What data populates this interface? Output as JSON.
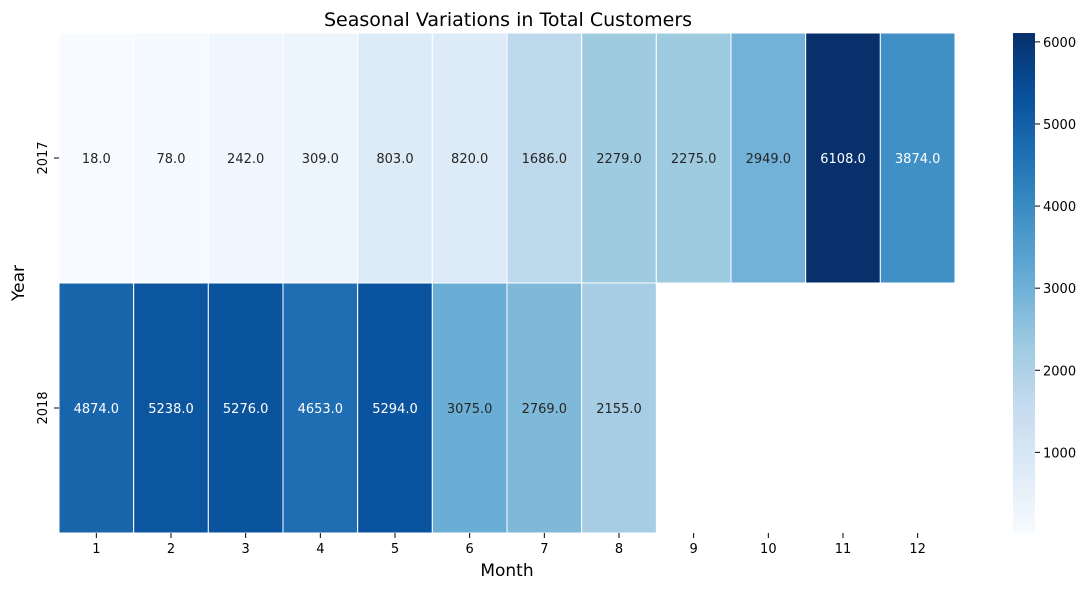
{
  "chart_data": {
    "type": "heatmap",
    "title": "Seasonal Variations in Total Customers",
    "xlabel": "Month",
    "ylabel": "Year",
    "x": [
      "1",
      "2",
      "3",
      "4",
      "5",
      "6",
      "7",
      "8",
      "9",
      "10",
      "11",
      "12"
    ],
    "y": [
      "2017",
      "2018"
    ],
    "values": [
      [
        18.0,
        78.0,
        242.0,
        309.0,
        803.0,
        820.0,
        1686.0,
        2279.0,
        2275.0,
        2949.0,
        6108.0,
        3874.0
      ],
      [
        4874.0,
        5238.0,
        5276.0,
        4653.0,
        5294.0,
        3075.0,
        2769.0,
        2155.0,
        null,
        null,
        null,
        null
      ]
    ],
    "value_format": "0.1f",
    "colormap": "Blues",
    "color_range": [
      18,
      6108
    ],
    "colorbar": {
      "ticks": [
        "1000",
        "2000",
        "3000",
        "4000",
        "5000",
        "6000"
      ],
      "tick_values": [
        1000,
        2000,
        3000,
        4000,
        5000,
        6000
      ]
    },
    "grid": false
  }
}
